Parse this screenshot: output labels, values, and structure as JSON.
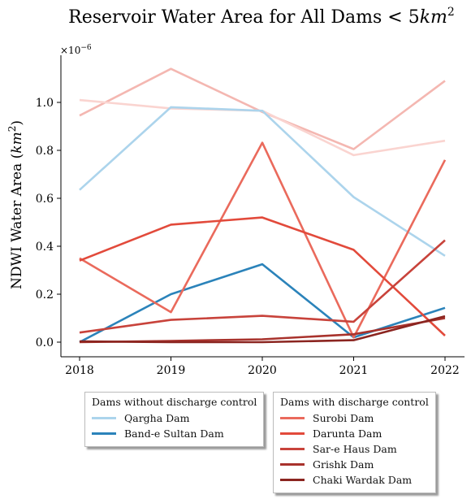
{
  "chart_data": {
    "type": "line",
    "title": "Reservoir Water Area for All Dams",
    "title_condition": "< 5",
    "title_unit": "km",
    "title_unit_exp": "2",
    "ylabel": "NDWI Water Area (",
    "ylabel_unit": "km",
    "ylabel_unit_exp": "2",
    "ylabel_close": ")",
    "y_scale_base": "×10",
    "y_scale_exp": "−6",
    "x": [
      "2018",
      "2019",
      "2020",
      "2021",
      "2022"
    ],
    "ylim": [
      -0.04,
      1.19
    ],
    "yticks": [
      "0.0",
      "0.2",
      "0.4",
      "0.6",
      "0.8",
      "1.0"
    ],
    "ytick_values": [
      0.0,
      0.2,
      0.4,
      0.6,
      0.8,
      1.0
    ],
    "grid": false,
    "background_series": [
      {
        "values": [
          0.945,
          1.14,
          0.96,
          0.805,
          1.09
        ],
        "color": "#f4b7b1"
      },
      {
        "values": [
          1.01,
          0.975,
          0.965,
          0.78,
          0.84
        ],
        "color": "#fad4d0"
      }
    ],
    "legend_groups": [
      {
        "title": "Dams without discharge control",
        "series": [
          {
            "name": "Qargha Dam",
            "values": [
              0.635,
              0.98,
              0.965,
              0.605,
              0.36
            ],
            "color": "#acd4ec"
          },
          {
            "name": "Band-e Sultan Dam",
            "values": [
              0.0,
              0.2,
              0.325,
              0.02,
              0.143
            ],
            "color": "#2b83ba"
          }
        ]
      },
      {
        "title": "Dams with discharge control",
        "series": [
          {
            "name": "Surobi Dam",
            "values": [
              0.35,
              0.125,
              0.832,
              0.02,
              0.76
            ],
            "color": "#ea6a5c"
          },
          {
            "name": "Darunta Dam",
            "values": [
              0.34,
              0.49,
              0.52,
              0.385,
              0.027
            ],
            "color": "#e24a3b"
          },
          {
            "name": "Sar-e Haus Dam",
            "values": [
              0.04,
              0.093,
              0.11,
              0.085,
              0.425
            ],
            "color": "#c8433b"
          },
          {
            "name": "Grishk Dam",
            "values": [
              0.0,
              0.005,
              0.012,
              0.033,
              0.1
            ],
            "color": "#a8322c"
          },
          {
            "name": "Chaki Wardak Dam",
            "values": [
              0.003,
              0.0,
              0.0,
              0.008,
              0.108
            ],
            "color": "#8b2520"
          }
        ]
      }
    ]
  }
}
